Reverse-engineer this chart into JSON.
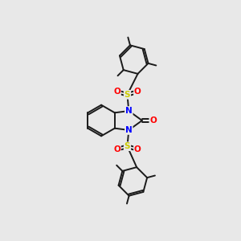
{
  "background_color": "#e8e8e8",
  "bond_color": "#1a1a1a",
  "N_color": "#0000ff",
  "O_color": "#ff0000",
  "S_color": "#cccc00",
  "line_width": 1.4,
  "figsize": [
    3.0,
    3.0
  ],
  "dpi": 100,
  "xlim": [
    -1.6,
    1.6
  ],
  "ylim": [
    -3.2,
    3.2
  ]
}
